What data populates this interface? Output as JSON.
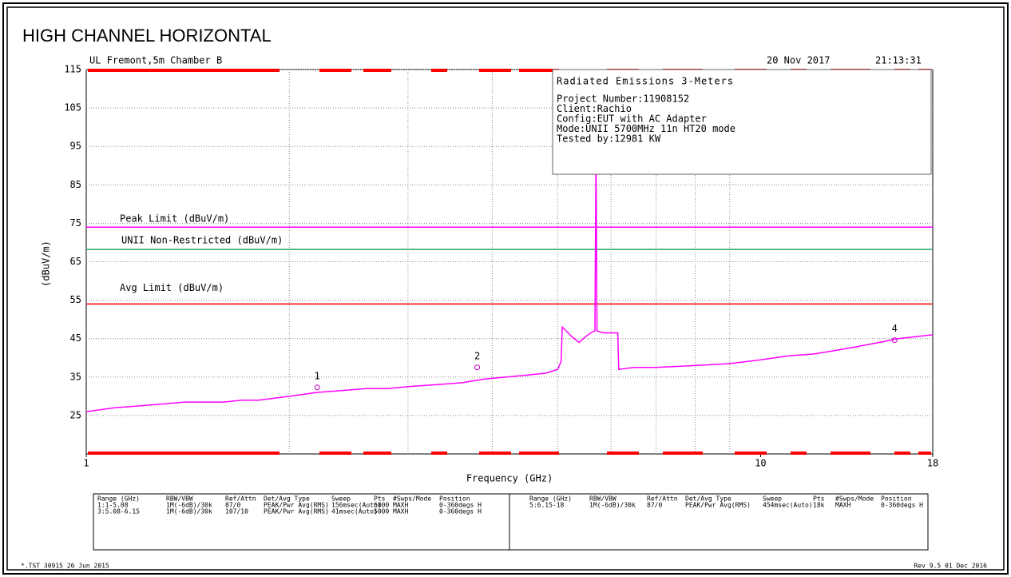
{
  "chart_data": {
    "type": "line",
    "title": "HIGH CHANNEL HORIZONTAL",
    "site": "UL Fremont,5m Chamber B",
    "date": "20 Nov 2017",
    "time": "21:13:31",
    "xlabel": "Frequency (GHz)",
    "ylabel": "(dBuV/m)",
    "xscale": "log",
    "xlim": [
      1,
      18
    ],
    "xticks": [
      1,
      10,
      18
    ],
    "xgrid": [
      2,
      3,
      4,
      5,
      6,
      7,
      8,
      9
    ],
    "ylim": [
      15,
      115
    ],
    "yticks": [
      25,
      35,
      45,
      55,
      65,
      75,
      85,
      95,
      105,
      115
    ],
    "grid": true,
    "series": [
      {
        "color": "#ff00ff",
        "x": [
          1.0,
          1.1,
          1.2,
          1.3,
          1.4,
          1.5,
          1.6,
          1.7,
          1.8,
          1.9,
          2.0,
          2.1,
          2.2,
          2.4,
          2.6,
          2.8,
          3.0,
          3.3,
          3.6,
          3.9,
          4.2,
          4.5,
          4.8,
          5.0,
          5.06,
          5.08,
          5.15,
          5.25,
          5.38,
          5.5,
          5.6,
          5.68,
          5.7,
          5.72,
          5.85,
          6.0,
          6.14,
          6.16,
          6.5,
          7.0,
          8.0,
          9.0,
          10.0,
          11.0,
          12.0,
          13.0,
          14.0,
          15.0,
          16.0,
          17.0,
          18.0
        ],
        "values": [
          26,
          27,
          27.5,
          28,
          28.5,
          28.5,
          28.5,
          29,
          29,
          29.5,
          30,
          30.5,
          31,
          31.5,
          32,
          32,
          32.5,
          33,
          33.5,
          34.5,
          35,
          35.5,
          36,
          37,
          39,
          48,
          47,
          45.5,
          44,
          45.5,
          46.5,
          47,
          94,
          47,
          46.5,
          46.5,
          46.5,
          37,
          37.5,
          37.5,
          38,
          38.5,
          39.5,
          40.5,
          41,
          42,
          43,
          44,
          45,
          45.5,
          46
        ]
      }
    ],
    "limits": [
      {
        "name": "Peak Limit (dBuV/m)",
        "value": 74,
        "color": "#ff00ff"
      },
      {
        "name": "UNII Non-Restricted (dBuV/m)",
        "value": 68.2,
        "color": "#22aa66"
      },
      {
        "name": "Avg Limit (dBuV/m)",
        "value": 54,
        "color": "#ff0000"
      }
    ],
    "markers": [
      {
        "label": "1",
        "x": 2.2,
        "value": 32.3
      },
      {
        "label": "2",
        "x": 3.8,
        "value": 37.5
      },
      {
        "label": "4",
        "x": 15.8,
        "value": 44.6
      }
    ],
    "info": {
      "title": "Radiated Emissions 3-Meters",
      "lines": [
        "Project Number:11908152",
        "Client:Rachio",
        "Config:EUT with AC Adapter",
        "Mode:UNII 5700MHz 11n HT20 mode",
        "Tested by:12981 KW"
      ]
    },
    "table": {
      "header": [
        "Range (GHz)",
        "RBW/VBW",
        "Ref/Attn",
        "Det/Avg Type",
        "Sweep",
        "Pts",
        "#Swps/Mode",
        "Position"
      ],
      "left": [
        [
          "1:1-5.08",
          "1M(-6dB)/30k",
          "87/0",
          "PEAK/Pwr Avg(RMS)",
          "156msec(Auto)",
          "6000",
          "MAXH",
          "0-360degs H"
        ],
        [
          "3:5.08-6.15",
          "1M(-6dB)/30k",
          "107/10",
          "PEAK/Pwr Avg(RMS)",
          "41msec(Auto)",
          "5000",
          "MAXH",
          "0-360degs H"
        ]
      ],
      "right": [
        [
          "5:6.15-18",
          "1M(-6dB)/30k",
          "87/0",
          "PEAK/Pwr Avg(RMS)",
          "454msec(Auto)",
          "18k",
          "MAXH",
          "0-360degs H"
        ]
      ]
    },
    "footer_left": "*.TST 30915 26 Jun 2015",
    "footer_right": "Rev 9.5 01 Dec 2016"
  }
}
